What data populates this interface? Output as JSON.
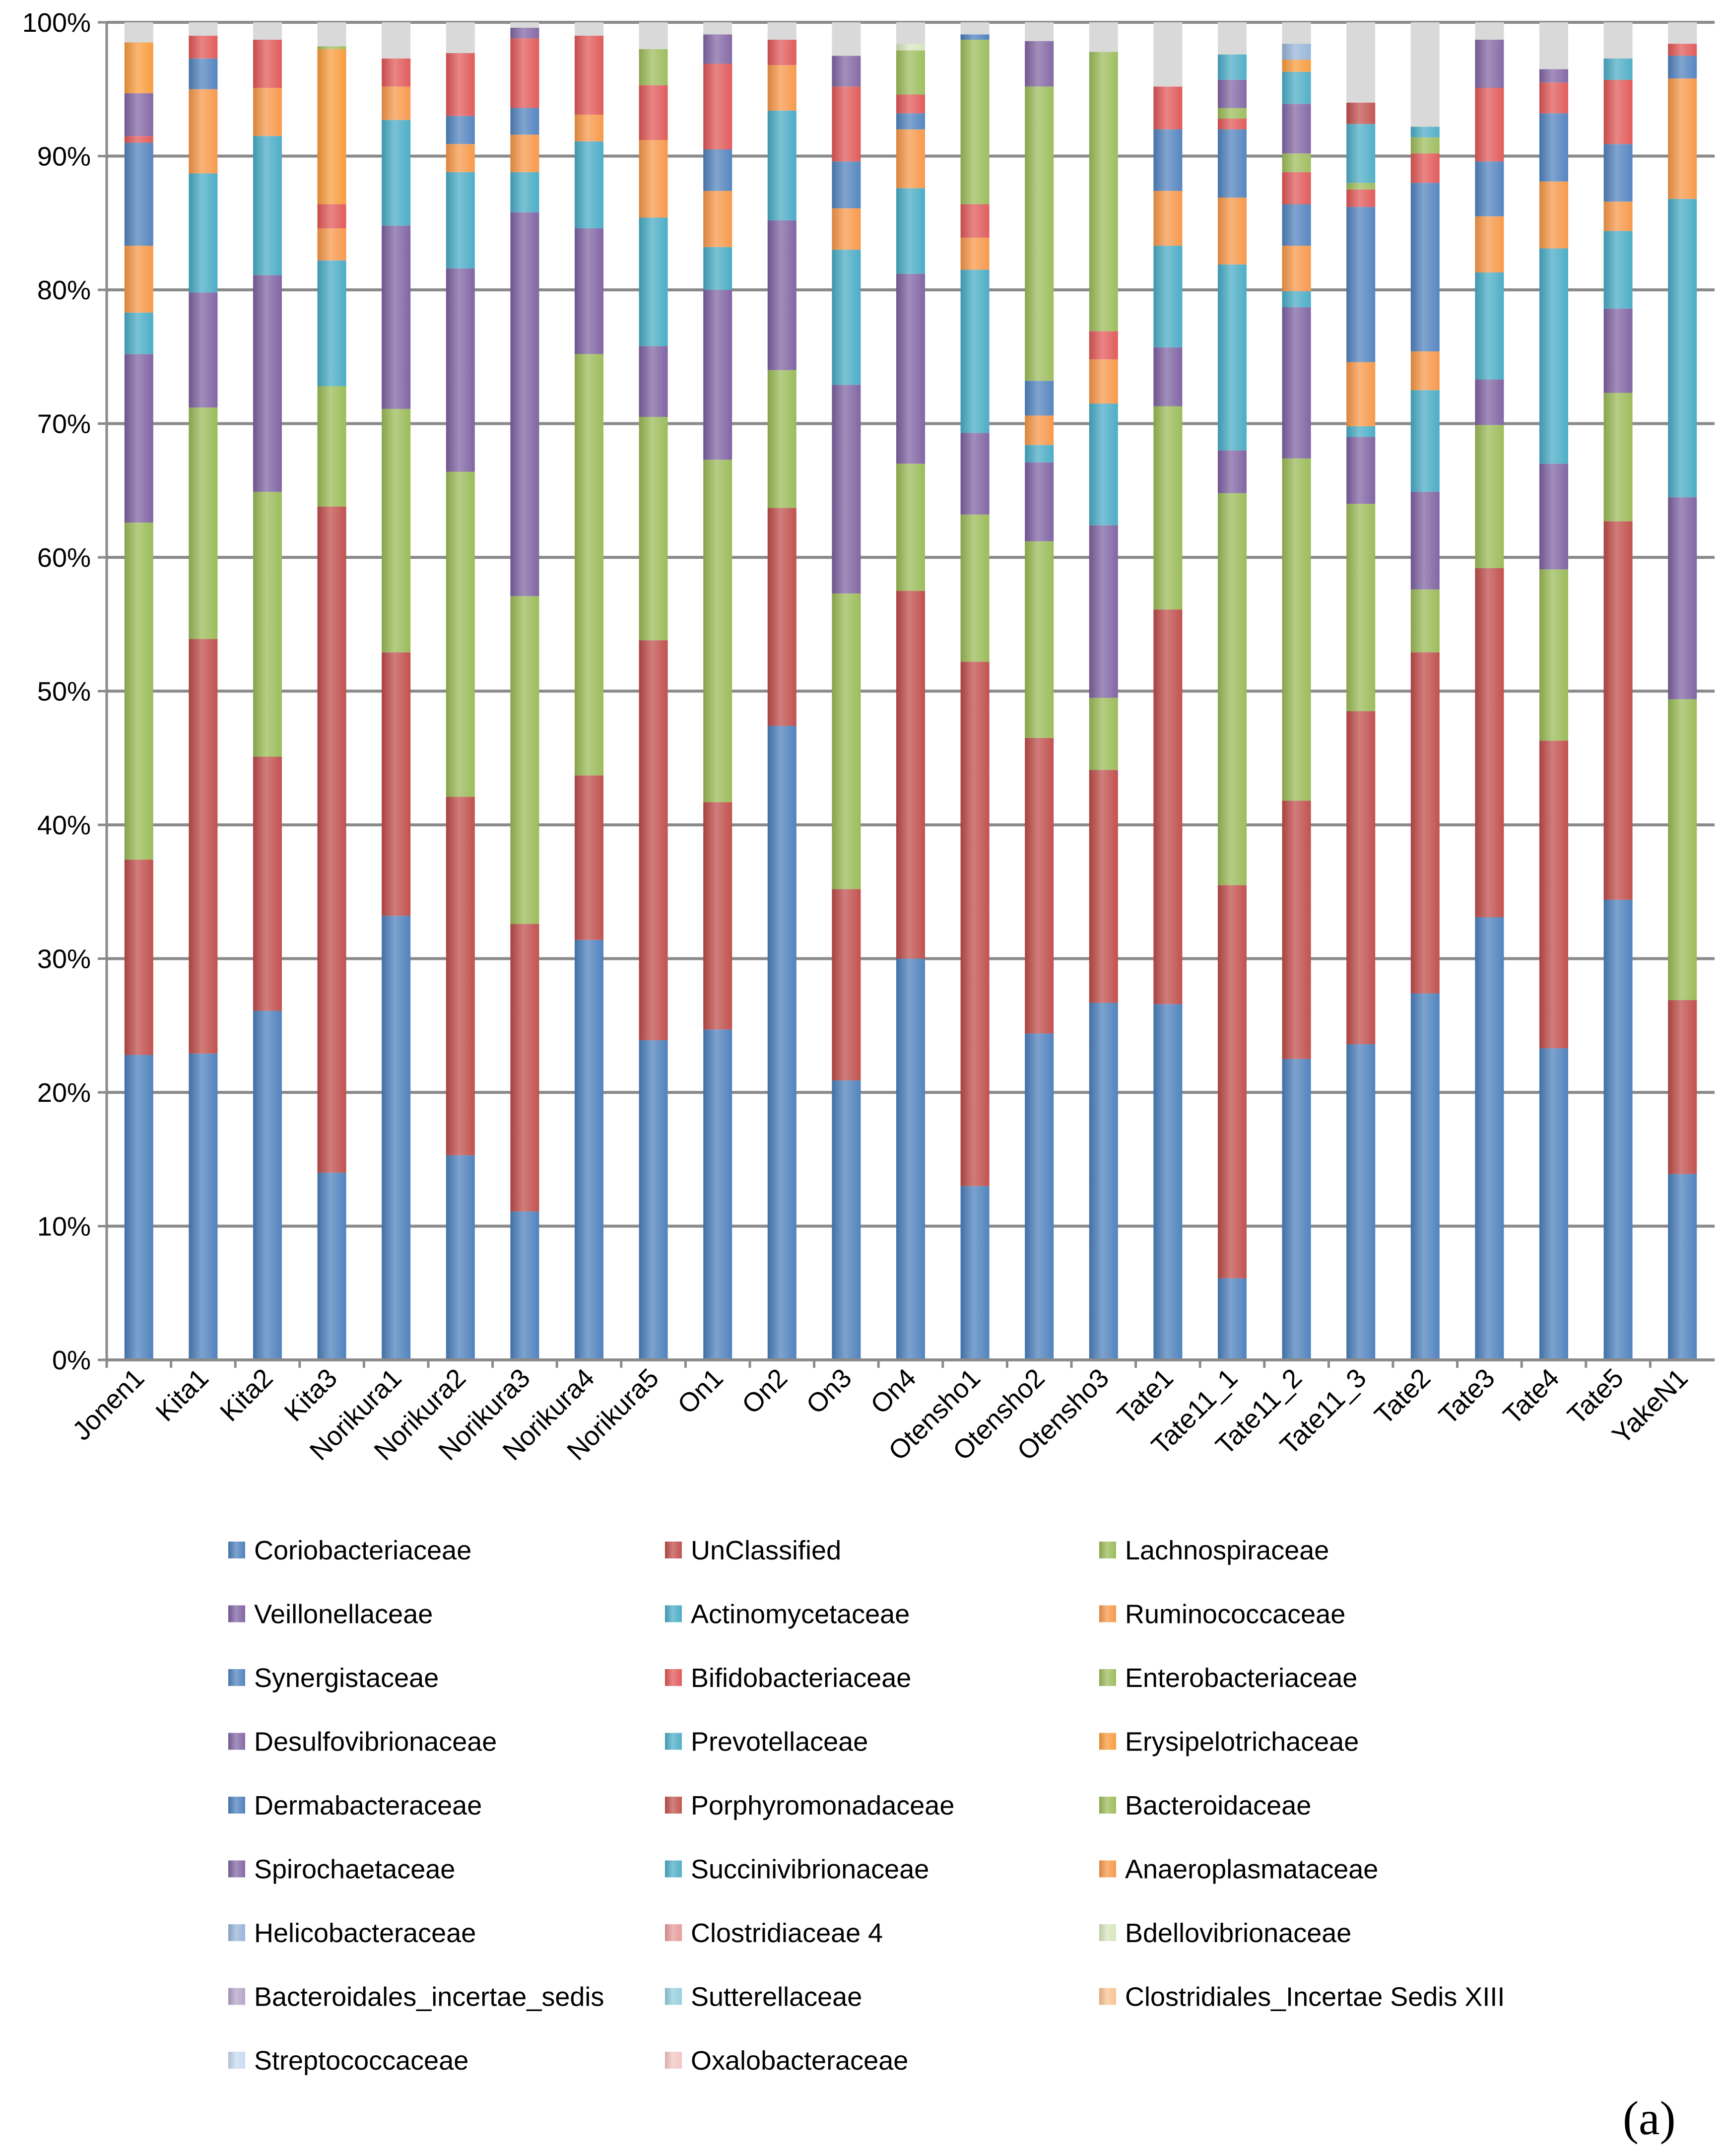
{
  "chart_data": {
    "type": "stacked-bar-100",
    "title": "",
    "xlabel": "",
    "ylabel": "",
    "ylim": [
      0,
      100
    ],
    "y_ticks": [
      "0%",
      "10%",
      "20%",
      "30%",
      "40%",
      "50%",
      "60%",
      "70%",
      "80%",
      "90%",
      "100%"
    ],
    "panel_label": "(a)",
    "categories": [
      "Jonen1",
      "Kita1",
      "Kita2",
      "Kita3",
      "Norikura1",
      "Norikura2",
      "Norikura3",
      "Norikura4",
      "Norikura5",
      "On1",
      "On2",
      "On3",
      "On4",
      "Otensho1",
      "Otensho2",
      "Otensho3",
      "Tate1",
      "Tate11_1",
      "Tate11_2",
      "Tate11_3",
      "Tate2",
      "Tate3",
      "Tate4",
      "Tate5",
      "YakeN1"
    ],
    "series": [
      {
        "name": "Coriobacteriaceae",
        "color": "#4a7ebb",
        "values": [
          22.8,
          22.9,
          26.1,
          14.0,
          33.2,
          15.3,
          11.1,
          31.4,
          23.9,
          24.7,
          47.4,
          20.9,
          30.0,
          13.0,
          24.4,
          26.7,
          26.6,
          6.1,
          22.5,
          23.6,
          27.4,
          33.1,
          23.3,
          34.4,
          13.9
        ]
      },
      {
        "name": "UnClassified",
        "color": "#be4b48",
        "values": [
          14.6,
          31.0,
          19.0,
          49.8,
          19.7,
          26.8,
          21.5,
          12.3,
          29.9,
          17.0,
          16.3,
          14.3,
          27.5,
          39.2,
          22.1,
          17.4,
          29.5,
          29.4,
          19.3,
          24.9,
          25.5,
          26.1,
          23.0,
          28.3,
          13.0
        ]
      },
      {
        "name": "Lachnospiraceae",
        "color": "#98b954",
        "values": [
          25.2,
          17.3,
          19.8,
          9.0,
          18.2,
          24.3,
          24.5,
          31.5,
          16.7,
          25.6,
          10.3,
          22.1,
          9.5,
          11.0,
          14.7,
          5.4,
          15.2,
          29.3,
          25.6,
          15.5,
          4.7,
          10.7,
          12.8,
          9.6,
          22.5
        ]
      },
      {
        "name": "Veillonellaceae",
        "color": "#7d60a0",
        "values": [
          12.6,
          8.6,
          16.2,
          0.0,
          13.7,
          15.2,
          28.7,
          9.4,
          5.3,
          12.7,
          11.2,
          15.6,
          14.2,
          6.1,
          5.9,
          12.9,
          4.4,
          3.2,
          11.3,
          5.0,
          7.3,
          3.4,
          7.9,
          6.3,
          15.1
        ]
      },
      {
        "name": "Actinomycetaceae",
        "color": "#46aac5",
        "values": [
          3.1,
          8.9,
          10.4,
          9.4,
          7.9,
          7.2,
          3.0,
          6.5,
          9.6,
          3.2,
          8.2,
          10.1,
          6.4,
          12.2,
          1.3,
          9.1,
          7.6,
          13.9,
          1.2,
          0.8,
          7.6,
          8.0,
          16.1,
          5.8,
          22.3
        ]
      },
      {
        "name": "Ruminococcaceae",
        "color": "#f79646",
        "values": [
          5.0,
          6.3,
          3.6,
          2.4,
          2.5,
          2.1,
          2.8,
          2.0,
          5.8,
          4.2,
          3.4,
          3.1,
          4.4,
          2.4,
          2.2,
          3.3,
          4.1,
          5.0,
          3.4,
          4.8,
          2.9,
          4.2,
          5.0,
          2.2,
          9.0
        ]
      },
      {
        "name": "Synergistaceae",
        "color": "#4f81bd",
        "values": [
          7.7,
          2.3,
          0.0,
          0.0,
          0.0,
          2.1,
          2.0,
          0.0,
          0.0,
          3.1,
          0.0,
          3.5,
          1.2,
          0.0,
          2.6,
          0.0,
          4.6,
          5.1,
          3.1,
          11.6,
          12.6,
          4.1,
          5.1,
          4.3,
          1.7
        ]
      },
      {
        "name": "Bifidobacteriaceae",
        "color": "#e05555",
        "values": [
          0.5,
          1.7,
          3.6,
          1.8,
          2.1,
          4.7,
          5.2,
          5.9,
          4.1,
          6.4,
          1.9,
          5.6,
          1.4,
          2.5,
          0.0,
          2.1,
          3.2,
          0.8,
          2.4,
          1.3,
          2.2,
          5.5,
          2.3,
          4.8,
          0.9
        ]
      },
      {
        "name": "Enterobacteriaceae",
        "color": "#9bbb59",
        "values": [
          0.0,
          0.0,
          0.0,
          0.0,
          0.0,
          0.0,
          0.0,
          0.0,
          2.7,
          0.0,
          0.0,
          0.0,
          3.3,
          12.3,
          22.0,
          20.9,
          0.0,
          0.8,
          1.4,
          0.5,
          1.2,
          0.0,
          0.0,
          0.0,
          0.0
        ]
      },
      {
        "name": "Desulfovibrionaceae",
        "color": "#8064a2",
        "values": [
          3.2,
          0.0,
          0.0,
          0.0,
          0.0,
          0.0,
          0.8,
          0.0,
          0.0,
          2.2,
          0.0,
          2.3,
          0.0,
          0.0,
          3.4,
          0.0,
          0.0,
          2.1,
          3.7,
          0.0,
          0.0,
          3.6,
          1.0,
          0.0,
          0.0
        ]
      },
      {
        "name": "Prevotellaceae",
        "color": "#4bacc6",
        "values": [
          0.0,
          0.0,
          0.0,
          0.0,
          0.0,
          0.0,
          0.0,
          0.0,
          0.0,
          0.0,
          0.0,
          0.0,
          0.0,
          0.0,
          0.0,
          0.0,
          0.0,
          1.9,
          2.4,
          4.4,
          0.8,
          0.0,
          0.0,
          1.6,
          0.0
        ]
      },
      {
        "name": "Erysipelotrichaceae",
        "color": "#f89a3a",
        "values": [
          3.8,
          0.0,
          0.0,
          11.6,
          0.0,
          0.0,
          0.0,
          0.0,
          0.0,
          0.0,
          0.0,
          0.0,
          0.0,
          0.0,
          0.0,
          0.0,
          0.0,
          0.0,
          0.9,
          0.0,
          0.0,
          0.0,
          0.0,
          0.0,
          0.0
        ]
      },
      {
        "name": "Dermabacteraceae",
        "color": "#4a7ebb",
        "values": [
          0.0,
          0.0,
          0.0,
          0.0,
          0.0,
          0.0,
          0.0,
          0.0,
          0.0,
          0.0,
          0.0,
          0.0,
          0.0,
          0.4,
          0.0,
          0.0,
          0.0,
          0.0,
          0.0,
          0.0,
          0.0,
          0.0,
          0.0,
          0.0,
          0.0
        ]
      },
      {
        "name": "Porphyromonadaceae",
        "color": "#c0504d",
        "values": [
          0.0,
          0.0,
          0.0,
          0.0,
          0.0,
          0.0,
          0.0,
          0.0,
          0.0,
          0.0,
          0.0,
          0.0,
          0.0,
          0.0,
          0.0,
          0.0,
          0.0,
          0.0,
          0.0,
          1.6,
          0.0,
          0.0,
          0.0,
          0.0,
          0.0
        ]
      },
      {
        "name": "Bacteroidaceae",
        "color": "#9bbb59",
        "values": [
          0.0,
          0.0,
          0.0,
          0.2,
          0.0,
          0.0,
          0.0,
          0.0,
          0.0,
          0.0,
          0.0,
          0.0,
          0.0,
          0.0,
          0.0,
          0.0,
          0.0,
          0.0,
          0.0,
          0.0,
          0.0,
          0.0,
          0.0,
          0.0,
          0.0
        ]
      },
      {
        "name": "Spirochaetaceae",
        "color": "#8064a2",
        "values": [
          0.0,
          0.0,
          0.0,
          0.0,
          0.0,
          0.0,
          0.0,
          0.0,
          0.0,
          0.0,
          0.0,
          0.0,
          0.0,
          0.0,
          0.0,
          0.0,
          0.0,
          0.0,
          0.0,
          0.0,
          0.0,
          0.0,
          0.0,
          0.0,
          0.0
        ]
      },
      {
        "name": "Succinivibrionaceae",
        "color": "#4bacc6",
        "values": [
          0.0,
          0.0,
          0.0,
          0.0,
          0.0,
          0.0,
          0.0,
          0.0,
          0.0,
          0.0,
          0.0,
          0.0,
          0.0,
          0.0,
          0.0,
          0.0,
          0.0,
          0.0,
          0.0,
          0.0,
          0.0,
          0.0,
          0.0,
          0.0,
          0.0
        ]
      },
      {
        "name": "Anaeroplasmataceae",
        "color": "#f79646",
        "values": [
          0.0,
          0.0,
          0.0,
          0.0,
          0.0,
          0.0,
          0.0,
          0.0,
          0.0,
          0.0,
          0.0,
          0.0,
          0.0,
          0.0,
          0.0,
          0.0,
          0.0,
          0.0,
          0.0,
          0.0,
          0.0,
          0.0,
          0.0,
          0.0,
          0.0
        ]
      },
      {
        "name": "Helicobacteraceae",
        "color": "#95b3d7",
        "values": [
          0.0,
          0.0,
          0.0,
          0.0,
          0.0,
          0.0,
          0.0,
          0.0,
          0.0,
          0.0,
          0.0,
          0.0,
          0.0,
          0.0,
          0.0,
          0.0,
          0.0,
          0.0,
          1.2,
          0.0,
          0.0,
          0.0,
          0.0,
          0.0,
          0.0
        ]
      },
      {
        "name": "Clostridiaceae 4",
        "color": "#e6999a",
        "values": [
          0.0,
          0.0,
          0.0,
          0.0,
          0.0,
          0.0,
          0.0,
          0.0,
          0.0,
          0.0,
          0.0,
          0.0,
          0.0,
          0.0,
          0.0,
          0.0,
          0.0,
          0.0,
          0.0,
          0.0,
          0.0,
          0.0,
          0.0,
          0.0,
          0.0
        ]
      },
      {
        "name": "Bdellovibrionaceae",
        "color": "#d7e4bd",
        "values": [
          0.0,
          0.0,
          0.0,
          0.0,
          0.0,
          0.0,
          0.0,
          0.0,
          0.0,
          0.0,
          0.0,
          0.0,
          0.5,
          0.0,
          0.0,
          0.0,
          0.0,
          0.0,
          0.0,
          0.0,
          0.0,
          0.0,
          0.0,
          0.0,
          0.0
        ]
      },
      {
        "name": "Bacteroidales_incertae_sedis",
        "color": "#b3a2c7",
        "values": [
          0.0,
          0.0,
          0.0,
          0.0,
          0.0,
          0.0,
          0.0,
          0.0,
          0.0,
          0.0,
          0.0,
          0.0,
          0.0,
          0.0,
          0.0,
          0.0,
          0.0,
          0.0,
          0.0,
          0.0,
          0.0,
          0.0,
          0.0,
          0.0,
          0.0
        ]
      },
      {
        "name": "Sutterellaceae",
        "color": "#93cddd",
        "values": [
          0.0,
          0.0,
          0.0,
          0.0,
          0.0,
          0.0,
          0.0,
          0.0,
          0.0,
          0.0,
          0.0,
          0.0,
          0.0,
          0.0,
          0.0,
          0.0,
          0.0,
          0.0,
          0.0,
          0.0,
          0.0,
          0.0,
          0.0,
          0.0,
          0.0
        ]
      },
      {
        "name": "Clostridiales_Incertae Sedis XIII",
        "color": "#fac090",
        "values": [
          0.0,
          0.0,
          0.0,
          0.0,
          0.0,
          0.0,
          0.0,
          0.0,
          0.0,
          0.0,
          0.0,
          0.0,
          0.0,
          0.0,
          0.0,
          0.0,
          0.0,
          0.0,
          0.0,
          0.0,
          0.0,
          0.0,
          0.0,
          0.0,
          0.0
        ]
      },
      {
        "name": "Streptococcaceae",
        "color": "#c6d9f1",
        "values": [
          0.0,
          0.0,
          0.0,
          0.0,
          0.0,
          0.0,
          0.0,
          0.0,
          0.0,
          0.0,
          0.0,
          0.0,
          0.0,
          0.0,
          0.0,
          0.0,
          0.0,
          0.0,
          0.0,
          0.0,
          0.0,
          0.0,
          0.0,
          0.0,
          0.0
        ]
      },
      {
        "name": "Oxalobacteraceae",
        "color": "#f2c4c4",
        "values": [
          0.0,
          0.0,
          0.0,
          0.0,
          0.0,
          0.0,
          0.0,
          0.0,
          0.0,
          0.0,
          0.0,
          0.0,
          0.0,
          0.0,
          0.0,
          0.0,
          0.0,
          0.0,
          0.0,
          0.0,
          0.0,
          0.0,
          0.0,
          0.0,
          0.0
        ]
      }
    ],
    "legend_order": [
      "Coriobacteriaceae",
      "UnClassified",
      "Lachnospiraceae",
      "Veillonellaceae",
      "Actinomycetaceae",
      "Ruminococcaceae",
      "Synergistaceae",
      "Bifidobacteriaceae",
      "Enterobacteriaceae",
      "Desulfovibrionaceae",
      "Prevotellaceae",
      "Erysipelotrichaceae",
      "Dermabacteraceae",
      "Porphyromonadaceae",
      "Bacteroidaceae",
      "Spirochaetaceae",
      "Succinivibrionaceae",
      "Anaeroplasmataceae",
      "Helicobacteraceae",
      "Clostridiaceae 4",
      "Bdellovibrionaceae",
      "Bacteroidales_incertae_sedis",
      "Sutterellaceae",
      "Clostridiales_Incertae Sedis XIII",
      "Streptococcaceae",
      "Oxalobacteraceae"
    ],
    "legend_placement": "bottom",
    "grid": true
  }
}
